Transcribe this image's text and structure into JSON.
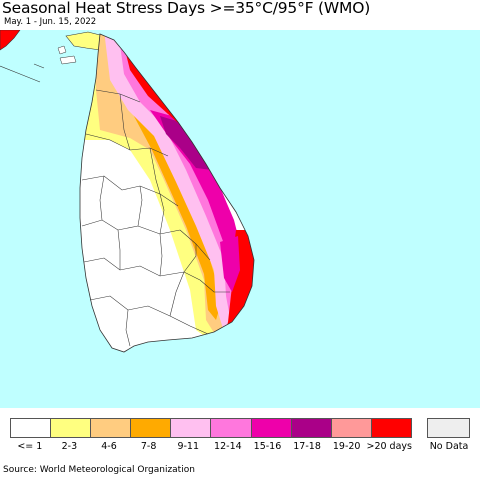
{
  "title": "Seasonal Heat Stress Days >=35°C/95°F (WMO)",
  "subtitle": "May. 1 - Jun. 15, 2022",
  "source": "Source: World Meteorological Organization",
  "colors": {
    "sea": "#bfffff",
    "land": "#ffffff",
    "border": "#333333"
  },
  "legend": {
    "items": [
      {
        "label": "<= 1",
        "color": "#ffffff"
      },
      {
        "label": "2-3",
        "color": "#ffff80"
      },
      {
        "label": "4-6",
        "color": "#ffcc80"
      },
      {
        "label": "7-8",
        "color": "#ffaa00"
      },
      {
        "label": "9-11",
        "color": "#ffc0f0"
      },
      {
        "label": "12-14",
        "color": "#ff77dd"
      },
      {
        "label": "15-16",
        "color": "#ee00aa"
      },
      {
        "label": "17-18",
        "color": "#aa0088"
      },
      {
        "label": "19-20",
        "color": "#ff9999"
      },
      {
        "label": ">20 days",
        "color": "#ff0000"
      }
    ],
    "no_data": {
      "label": "No Data",
      "color": "#eeeeee"
    }
  }
}
